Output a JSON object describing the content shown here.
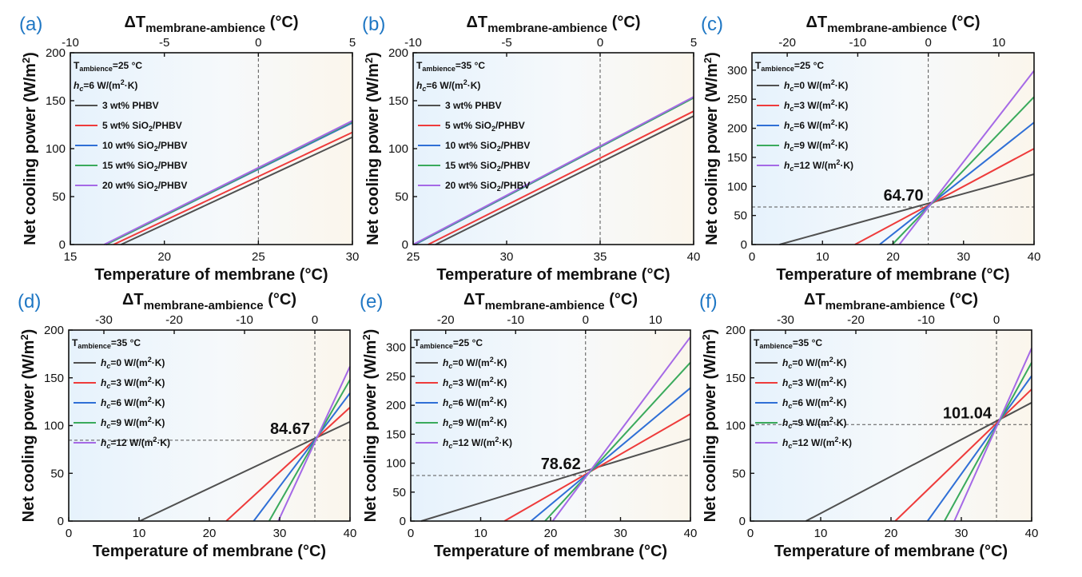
{
  "chart_data": [
    {
      "panel": "(a)",
      "type": "line",
      "xlabel": "Temperature of membrane (°C)",
      "ylabel_main": "Net cooling power (W/m",
      "ylabel_sup": "2",
      "ylabel_end": ")",
      "top_label_main": "ΔT",
      "top_label_sub": "membrane-ambience",
      "top_label_unit": " (°C)",
      "xlim": [
        15,
        30
      ],
      "ylim": [
        0,
        200
      ],
      "xticks": [
        15,
        20,
        25,
        30
      ],
      "yticks": [
        0,
        50,
        100,
        150,
        200
      ],
      "top_ticks": [
        -10,
        -5,
        0,
        5
      ],
      "top_offset": 25,
      "ambient": 25,
      "crosshair_y": null,
      "callout": null,
      "legend_header": [
        {
          "base": "T",
          "sub": "ambience",
          "rest": "=25 °C"
        },
        {
          "hc": true,
          "rest": "=6 W/(m",
          "sup": "2",
          "end": "·K)"
        }
      ],
      "series": [
        {
          "name": "3 wt% PHBV",
          "color": "#505050",
          "x": [
            17.7,
            30
          ],
          "y": [
            0,
            112
          ]
        },
        {
          "name": "5 wt% SiO2/PHBV",
          "label": "5 wt% SiO",
          "sub": "2",
          "end": "/PHBV",
          "color": "#ee3b3b",
          "x": [
            17.3,
            30
          ],
          "y": [
            0,
            117
          ]
        },
        {
          "name": "10 wt% SiO2/PHBV",
          "label": "10 wt% SiO",
          "sub": "2",
          "end": "/PHBV",
          "color": "#2f6fd6",
          "x": [
            16.9,
            30
          ],
          "y": [
            0,
            127
          ]
        },
        {
          "name": "15 wt% SiO2/PHBV",
          "label": "15 wt% SiO",
          "sub": "2",
          "end": "/PHBV",
          "color": "#3aaa5c",
          "x": [
            16.9,
            30
          ],
          "y": [
            0,
            128
          ]
        },
        {
          "name": "20 wt% SiO2/PHBV",
          "label": "20 wt% SiO",
          "sub": "2",
          "end": "/PHBV",
          "color": "#a569e6",
          "x": [
            16.8,
            30
          ],
          "y": [
            0,
            129
          ]
        }
      ]
    },
    {
      "panel": "(b)",
      "type": "line",
      "xlabel": "Temperature of membrane (°C)",
      "ylabel_main": "Net cooling power (W/m",
      "ylabel_sup": "2",
      "ylabel_end": ")",
      "top_label_main": "ΔT",
      "top_label_sub": "membrane-ambience",
      "top_label_unit": " (°C)",
      "xlim": [
        25,
        40
      ],
      "ylim": [
        0,
        200
      ],
      "xticks": [
        25,
        30,
        35,
        40
      ],
      "yticks": [
        0,
        50,
        100,
        150,
        200
      ],
      "top_ticks": [
        -10,
        -5,
        0,
        5
      ],
      "top_offset": 35,
      "ambient": 35,
      "crosshair_y": null,
      "callout": null,
      "legend_header": [
        {
          "base": "T",
          "sub": "ambience",
          "rest": "=35 °C"
        },
        {
          "hc": true,
          "rest": "=6 W/(m",
          "sup": "2",
          "end": "·K)"
        }
      ],
      "series": [
        {
          "name": "3 wt% PHBV",
          "color": "#505050",
          "x": [
            26.2,
            40
          ],
          "y": [
            0,
            134
          ]
        },
        {
          "name": "5 wt% SiO2/PHBV",
          "label": "5 wt% SiO",
          "sub": "2",
          "end": "/PHBV",
          "color": "#ee3b3b",
          "x": [
            25.8,
            40
          ],
          "y": [
            0,
            139
          ]
        },
        {
          "name": "10 wt% SiO2/PHBV",
          "label": "10 wt% SiO",
          "sub": "2",
          "end": "/PHBV",
          "color": "#2f6fd6",
          "x": [
            25.1,
            40
          ],
          "y": [
            0,
            153
          ]
        },
        {
          "name": "15 wt% SiO2/PHBV",
          "label": "15 wt% SiO",
          "sub": "2",
          "end": "/PHBV",
          "color": "#3aaa5c",
          "x": [
            25.05,
            40
          ],
          "y": [
            0,
            153
          ]
        },
        {
          "name": "20 wt% SiO2/PHBV",
          "label": "20 wt% SiO",
          "sub": "2",
          "end": "/PHBV",
          "color": "#a569e6",
          "x": [
            25.0,
            40
          ],
          "y": [
            0,
            154
          ]
        }
      ]
    },
    {
      "panel": "(c)",
      "type": "line",
      "xlabel": "Temperature of membrane (°C)",
      "ylabel_main": "Net cooling power (W/m",
      "ylabel_sup": "2",
      "ylabel_end": ")",
      "top_label_main": "ΔT",
      "top_label_sub": "membrane-ambience",
      "top_label_unit": " (°C)",
      "xlim": [
        0,
        40
      ],
      "ylim": [
        0,
        330
      ],
      "xticks": [
        0,
        10,
        20,
        30,
        40
      ],
      "yticks": [
        0,
        50,
        100,
        150,
        200,
        250,
        300
      ],
      "top_ticks": [
        -20,
        -10,
        0,
        10
      ],
      "top_offset": 25,
      "ambient": 25,
      "crosshair_y": 64.7,
      "callout": "64.70",
      "legend_header": [
        {
          "base": "T",
          "sub": "ambience",
          "rest": "=25 °C"
        }
      ],
      "series": [
        {
          "name": "hc=0 W/(m2·K)",
          "hcval": "=0 W/(m",
          "color": "#505050",
          "x": [
            3.9,
            40
          ],
          "y": [
            0,
            121
          ]
        },
        {
          "name": "hc=3 W/(m2·K)",
          "hcval": "=3 W/(m",
          "color": "#ee3b3b",
          "x": [
            14.6,
            40
          ],
          "y": [
            0,
            165
          ]
        },
        {
          "name": "hc=6 W/(m2·K)",
          "hcval": "=6 W/(m",
          "color": "#2f6fd6",
          "x": [
            18.1,
            40
          ],
          "y": [
            0,
            210
          ]
        },
        {
          "name": "hc=9 W/(m2·K)",
          "hcval": "=9 W/(m",
          "color": "#3aaa5c",
          "x": [
            19.9,
            40
          ],
          "y": [
            0,
            254
          ]
        },
        {
          "name": "hc=12 W/(m2·K)",
          "hcval": "=12 W/(m",
          "color": "#a569e6",
          "x": [
            20.9,
            40
          ],
          "y": [
            0,
            299
          ]
        }
      ]
    },
    {
      "panel": "(d)",
      "type": "line",
      "xlabel": "Temperature of membrane (°C)",
      "ylabel_main": "Net cooling power (W/m",
      "ylabel_sup": "2",
      "ylabel_end": ")",
      "top_label_main": "ΔT",
      "top_label_sub": "membrane-ambience",
      "top_label_unit": " (°C)",
      "xlim": [
        0,
        40
      ],
      "ylim": [
        0,
        200
      ],
      "xticks": [
        0,
        10,
        20,
        30,
        40
      ],
      "yticks": [
        0,
        50,
        100,
        150,
        200
      ],
      "top_ticks": [
        -30,
        -20,
        -10,
        0
      ],
      "top_offset": 35,
      "ambient": 35,
      "crosshair_y": 84.67,
      "callout": "84.67",
      "legend_header": [
        {
          "base": "T",
          "sub": "ambience",
          "rest": "=35 °C"
        }
      ],
      "series": [
        {
          "name": "hc=0 W/(m2·K)",
          "hcval": "=0 W/(m",
          "color": "#505050",
          "x": [
            10.1,
            40
          ],
          "y": [
            0,
            104
          ]
        },
        {
          "name": "hc=3 W/(m2·K)",
          "hcval": "=3 W/(m",
          "color": "#ee3b3b",
          "x": [
            22.4,
            40
          ],
          "y": [
            0,
            119
          ]
        },
        {
          "name": "hc=6 W/(m2·K)",
          "hcval": "=6 W/(m",
          "color": "#2f6fd6",
          "x": [
            26.3,
            40
          ],
          "y": [
            0,
            134
          ]
        },
        {
          "name": "hc=9 W/(m2·K)",
          "hcval": "=9 W/(m",
          "color": "#3aaa5c",
          "x": [
            28.5,
            40
          ],
          "y": [
            0,
            148
          ]
        },
        {
          "name": "hc=12 W/(m2·K)",
          "hcval": "=12 W/(m",
          "color": "#a569e6",
          "x": [
            29.8,
            40
          ],
          "y": [
            0,
            162
          ]
        }
      ]
    },
    {
      "panel": "(e)",
      "type": "line",
      "xlabel": "Temperature of membrane (°C)",
      "ylabel_main": "Net cooling power (W/m",
      "ylabel_sup": "2",
      "ylabel_end": ")",
      "top_label_main": "ΔT",
      "top_label_sub": "membrane-ambience",
      "top_label_unit": " (°C)",
      "xlim": [
        0,
        40
      ],
      "ylim": [
        0,
        330
      ],
      "xticks": [
        0,
        10,
        20,
        30,
        40
      ],
      "yticks": [
        0,
        50,
        100,
        150,
        200,
        250,
        300
      ],
      "top_ticks": [
        -20,
        -10,
        0,
        10
      ],
      "top_offset": 25,
      "ambient": 25,
      "crosshair_y": 78.62,
      "callout": "78.62",
      "legend_header": [
        {
          "base": "T",
          "sub": "ambience",
          "rest": "=25 °C"
        }
      ],
      "series": [
        {
          "name": "hc=0 W/(m2·K)",
          "hcval": "=0 W/(m",
          "color": "#505050",
          "x": [
            1.5,
            40
          ],
          "y": [
            0,
            142
          ]
        },
        {
          "name": "hc=3 W/(m2·K)",
          "hcval": "=3 W/(m",
          "color": "#ee3b3b",
          "x": [
            13.4,
            40
          ],
          "y": [
            0,
            185
          ]
        },
        {
          "name": "hc=6 W/(m2·K)",
          "hcval": "=6 W/(m",
          "color": "#2f6fd6",
          "x": [
            17.2,
            40
          ],
          "y": [
            0,
            230
          ]
        },
        {
          "name": "hc=9 W/(m2·K)",
          "hcval": "=9 W/(m",
          "color": "#3aaa5c",
          "x": [
            19.2,
            40
          ],
          "y": [
            0,
            274
          ]
        },
        {
          "name": "hc=12 W/(m2·K)",
          "hcval": "=12 W/(m",
          "color": "#a569e6",
          "x": [
            20.3,
            40
          ],
          "y": [
            0,
            318
          ]
        }
      ]
    },
    {
      "panel": "(f)",
      "type": "line",
      "xlabel": "Temperature of membrane (°C)",
      "ylabel_main": "Net cooling power (W/m",
      "ylabel_sup": "2",
      "ylabel_end": ")",
      "top_label_main": "ΔT",
      "top_label_sub": "membrane-ambience",
      "top_label_unit": " (°C)",
      "xlim": [
        0,
        40
      ],
      "ylim": [
        0,
        200
      ],
      "xticks": [
        0,
        10,
        20,
        30,
        40
      ],
      "yticks": [
        0,
        50,
        100,
        150,
        200
      ],
      "top_ticks": [
        -30,
        -20,
        -10,
        0
      ],
      "top_offset": 35,
      "ambient": 35,
      "crosshair_y": 101.04,
      "callout": "101.04",
      "legend_header": [
        {
          "base": "T",
          "sub": "ambience",
          "rest": "=35 °C"
        }
      ],
      "series": [
        {
          "name": "hc=0 W/(m2·K)",
          "hcval": "=0 W/(m",
          "color": "#505050",
          "x": [
            7.9,
            40
          ],
          "y": [
            0,
            124
          ]
        },
        {
          "name": "hc=3 W/(m2·K)",
          "hcval": "=3 W/(m",
          "color": "#ee3b3b",
          "x": [
            20.6,
            40
          ],
          "y": [
            0,
            138
          ]
        },
        {
          "name": "hc=6 W/(m2·K)",
          "hcval": "=6 W/(m",
          "color": "#2f6fd6",
          "x": [
            25.2,
            40
          ],
          "y": [
            0,
            152
          ]
        },
        {
          "name": "hc=9 W/(m2·K)",
          "hcval": "=9 W/(m",
          "color": "#3aaa5c",
          "x": [
            27.6,
            40
          ],
          "y": [
            0,
            166
          ]
        },
        {
          "name": "hc=12 W/(m2·K)",
          "hcval": "=12 W/(m",
          "color": "#a569e6",
          "x": [
            29.0,
            40
          ],
          "y": [
            0,
            181
          ]
        }
      ]
    }
  ]
}
